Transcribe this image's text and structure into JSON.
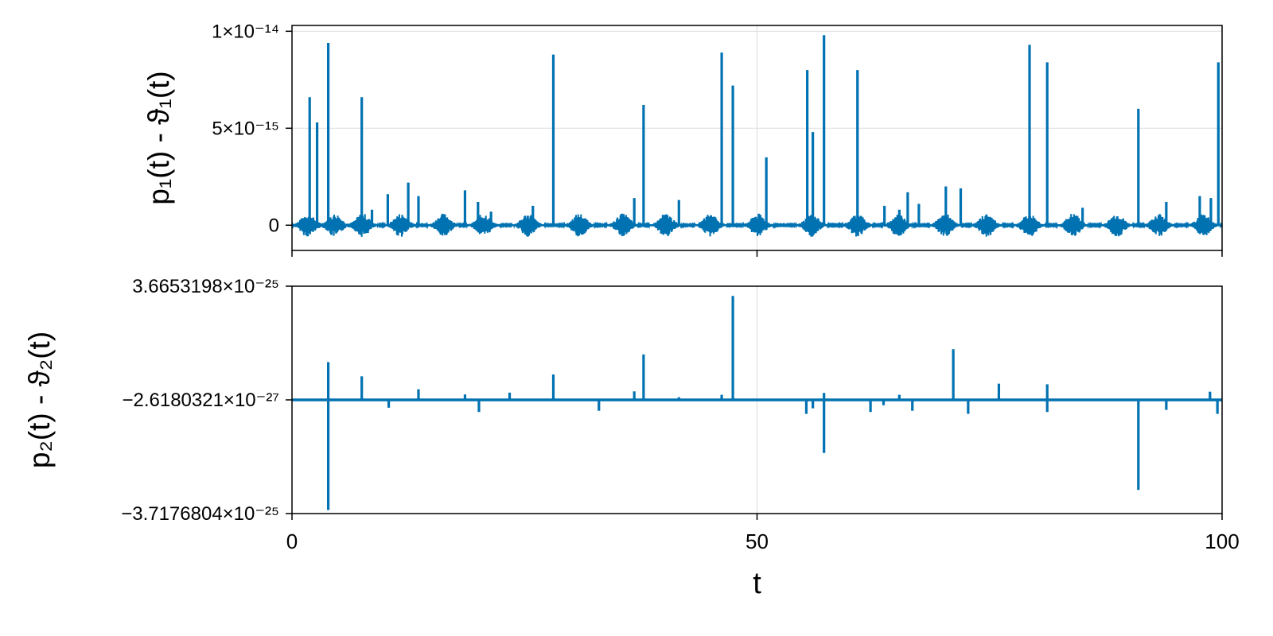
{
  "colors": {
    "series": "#0072b2",
    "grid": "#e0e0e0",
    "axis": "#000000",
    "background": "#ffffff"
  },
  "chart_data": [
    {
      "type": "line",
      "panel": "top",
      "ylabel": "p₁(t) - ϑ₁(t)",
      "xlabel": "",
      "xlim": [
        0,
        100
      ],
      "ylim": [
        -1.3e-15,
        1.03e-14
      ],
      "grid": true,
      "xticks": [
        {
          "value": 0,
          "label": ""
        },
        {
          "value": 50,
          "label": ""
        },
        {
          "value": 100,
          "label": ""
        }
      ],
      "yticks": [
        {
          "value": 0,
          "label": "0"
        },
        {
          "value": 5e-15,
          "label": "5×10⁻¹⁵"
        },
        {
          "value": 1e-14,
          "label": "1×10⁻¹⁴"
        }
      ],
      "baseline": 0,
      "noise_bursts": {
        "centers": [
          1.7,
          4.6,
          7.6,
          11.7,
          16.3,
          20.6,
          25.4,
          30.9,
          35.6,
          40.2,
          45.0,
          50.1,
          55.9,
          60.8,
          65.2,
          70.2,
          74.7,
          79.3,
          84.0,
          88.7,
          93.2,
          98.0
        ],
        "amplitude": 6e-16
      },
      "spikes": [
        {
          "x": 1.9,
          "y": 6.6e-15
        },
        {
          "x": 2.7,
          "y": 5.3e-15
        },
        {
          "x": 3.9,
          "y": 9.4e-15
        },
        {
          "x": 7.5,
          "y": 6.6e-15
        },
        {
          "x": 8.6,
          "y": 8e-16
        },
        {
          "x": 10.3,
          "y": 1.6e-15
        },
        {
          "x": 12.5,
          "y": 2.2e-15
        },
        {
          "x": 13.6,
          "y": 1.5e-15
        },
        {
          "x": 18.6,
          "y": 1.8e-15
        },
        {
          "x": 20.0,
          "y": 1.2e-15
        },
        {
          "x": 21.4,
          "y": 7e-16
        },
        {
          "x": 25.9,
          "y": 1e-15
        },
        {
          "x": 28.1,
          "y": 8.8e-15
        },
        {
          "x": 36.8,
          "y": 1.4e-15
        },
        {
          "x": 37.8,
          "y": 6.2e-15
        },
        {
          "x": 41.6,
          "y": 1.3e-15
        },
        {
          "x": 46.2,
          "y": 8.9e-15
        },
        {
          "x": 47.4,
          "y": 7.2e-15
        },
        {
          "x": 51.0,
          "y": 3.5e-15
        },
        {
          "x": 55.4,
          "y": 8e-15
        },
        {
          "x": 56.0,
          "y": 4.8e-15
        },
        {
          "x": 57.2,
          "y": 9.8e-15
        },
        {
          "x": 60.8,
          "y": 8e-15
        },
        {
          "x": 63.7,
          "y": 1e-15
        },
        {
          "x": 65.3,
          "y": 8e-16
        },
        {
          "x": 66.2,
          "y": 1.7e-15
        },
        {
          "x": 67.4,
          "y": 1.1e-15
        },
        {
          "x": 70.3,
          "y": 2e-15
        },
        {
          "x": 71.9,
          "y": 1.9e-15
        },
        {
          "x": 79.3,
          "y": 9.3e-15
        },
        {
          "x": 81.2,
          "y": 8.4e-15
        },
        {
          "x": 85.0,
          "y": 9e-16
        },
        {
          "x": 91.0,
          "y": 6e-15
        },
        {
          "x": 94.0,
          "y": 1.2e-15
        },
        {
          "x": 97.6,
          "y": 1.5e-15
        },
        {
          "x": 98.8,
          "y": 1.4e-15
        },
        {
          "x": 99.6,
          "y": 8.4e-15
        }
      ]
    },
    {
      "type": "line",
      "panel": "bottom",
      "ylabel": "p₂(t) - ϑ₂(t)",
      "xlabel": "t",
      "xlim": [
        0,
        100
      ],
      "ylim": [
        -3.7176804e-25,
        3.6653198e-25
      ],
      "grid": true,
      "xticks": [
        {
          "value": 0,
          "label": "0"
        },
        {
          "value": 50,
          "label": "50"
        },
        {
          "value": 100,
          "label": "100"
        }
      ],
      "yticks": [
        {
          "value": -3.7176804e-25,
          "label": "−3.7176804×10⁻²⁵"
        },
        {
          "value": -2.6180321e-27,
          "label": "−2.6180321×10⁻²⁷"
        },
        {
          "value": 3.6653198e-25,
          "label": "3.6653198×10⁻²⁵"
        }
      ],
      "baseline": -2.6180321e-27,
      "spikes": [
        {
          "x": 3.9,
          "y": 1.2e-25
        },
        {
          "x": 3.9,
          "y": -3.6e-25
        },
        {
          "x": 7.5,
          "y": 7.4e-26
        },
        {
          "x": 10.4,
          "y": -2.8e-26
        },
        {
          "x": 13.6,
          "y": 3.2e-26
        },
        {
          "x": 18.6,
          "y": 1.5e-26
        },
        {
          "x": 20.1,
          "y": -4.2e-26
        },
        {
          "x": 23.4,
          "y": 2.1e-26
        },
        {
          "x": 28.1,
          "y": 8e-26
        },
        {
          "x": 33.0,
          "y": -3.8e-26
        },
        {
          "x": 36.8,
          "y": 2.5e-26
        },
        {
          "x": 37.8,
          "y": 1.45e-25
        },
        {
          "x": 41.6,
          "y": 6e-27
        },
        {
          "x": 46.2,
          "y": 1.4e-26
        },
        {
          "x": 47.4,
          "y": 3.35e-25
        },
        {
          "x": 55.3,
          "y": -4.8e-26
        },
        {
          "x": 56.0,
          "y": -3e-26
        },
        {
          "x": 57.2,
          "y": 2e-26
        },
        {
          "x": 57.2,
          "y": -1.75e-25
        },
        {
          "x": 62.2,
          "y": -4.2e-26
        },
        {
          "x": 63.6,
          "y": -2e-26
        },
        {
          "x": 65.3,
          "y": 1.4e-26
        },
        {
          "x": 66.7,
          "y": -3.8e-26
        },
        {
          "x": 71.1,
          "y": 1.62e-25
        },
        {
          "x": 72.7,
          "y": -4.8e-26
        },
        {
          "x": 76.0,
          "y": 5e-26
        },
        {
          "x": 79.1,
          "y": -5e-27
        },
        {
          "x": 81.2,
          "y": 4.8e-26
        },
        {
          "x": 81.2,
          "y": -4.2e-26
        },
        {
          "x": 86.3,
          "y": -4e-27
        },
        {
          "x": 91.0,
          "y": -2.95e-25
        },
        {
          "x": 94.0,
          "y": -3.5e-26
        },
        {
          "x": 98.7,
          "y": 2.4e-26
        },
        {
          "x": 99.5,
          "y": -4.8e-26
        }
      ]
    }
  ]
}
